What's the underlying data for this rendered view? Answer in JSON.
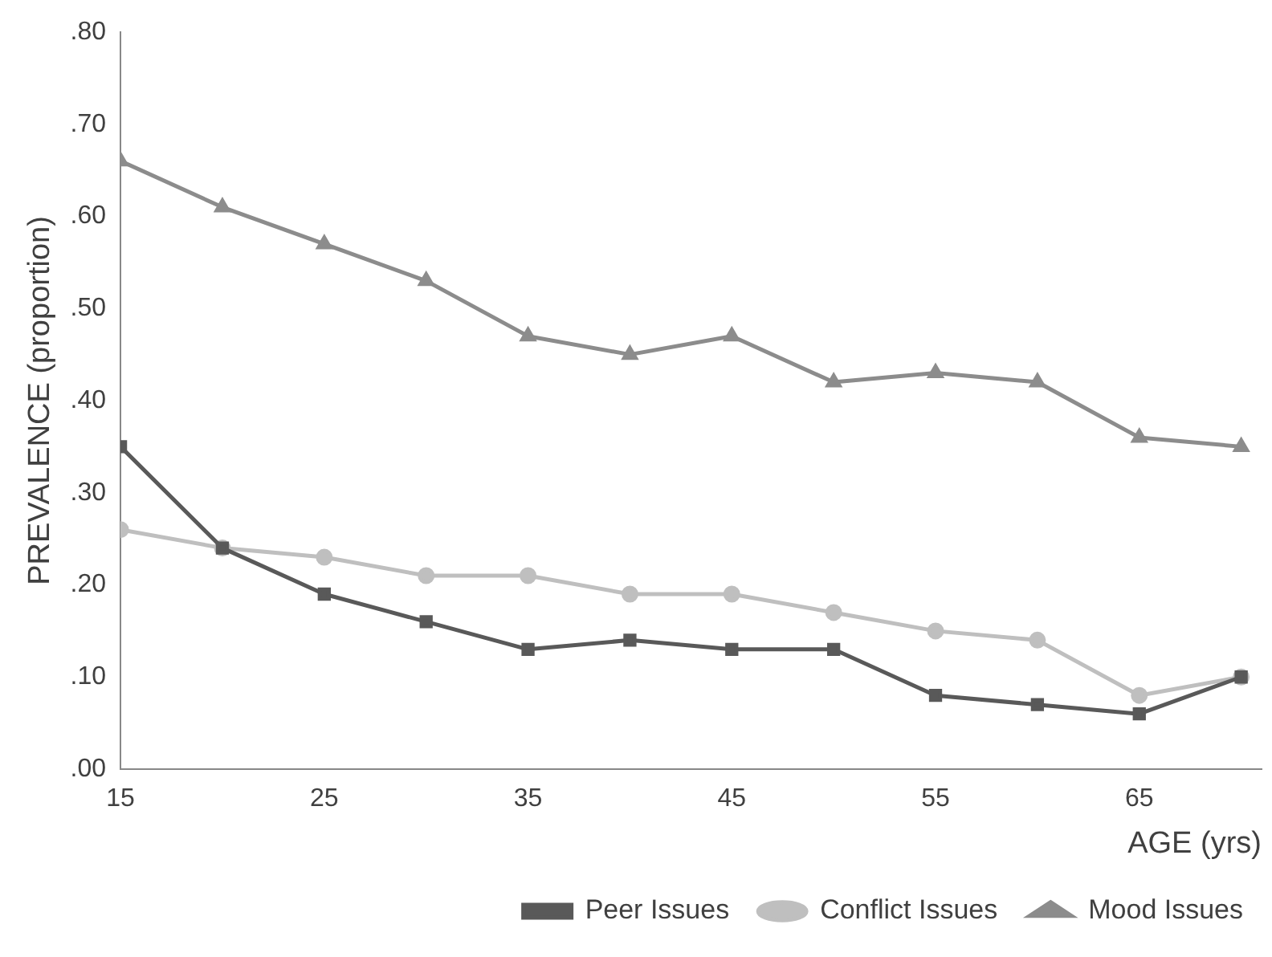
{
  "chart_data": {
    "type": "line",
    "xlabel": "AGE (yrs)",
    "ylabel": "PREVALENCE (proportion)",
    "x": [
      15,
      20,
      25,
      30,
      35,
      40,
      45,
      50,
      55,
      60,
      65,
      70
    ],
    "series": [
      {
        "name": "Peer Issues",
        "color": "#595959",
        "marker": "square",
        "values": [
          0.35,
          0.24,
          0.19,
          0.16,
          0.13,
          0.14,
          0.13,
          0.13,
          0.08,
          0.07,
          0.06,
          0.1
        ]
      },
      {
        "name": "Conflict Issues",
        "color": "#bfbfbf",
        "marker": "circle",
        "values": [
          0.26,
          0.24,
          0.23,
          0.21,
          0.21,
          0.19,
          0.19,
          0.17,
          0.15,
          0.14,
          0.08,
          0.1
        ]
      },
      {
        "name": "Mood Issues",
        "color": "#8c8c8c",
        "marker": "triangle",
        "values": [
          0.66,
          0.61,
          0.57,
          0.53,
          0.47,
          0.45,
          0.47,
          0.42,
          0.43,
          0.42,
          0.36,
          0.35
        ]
      }
    ],
    "xlim": [
      15,
      71
    ],
    "xticks": [
      15,
      25,
      35,
      45,
      55,
      65
    ],
    "ylim": [
      0,
      0.8
    ],
    "yticks": [
      {
        "value": 0,
        "label": ".00"
      },
      {
        "value": 0.1,
        "label": ".10"
      },
      {
        "value": 0.2,
        "label": ".20"
      },
      {
        "value": 0.3,
        "label": ".30"
      },
      {
        "value": 0.4,
        "label": ".40"
      },
      {
        "value": 0.5,
        "label": ".50"
      },
      {
        "value": 0.6,
        "label": ".60"
      },
      {
        "value": 0.7,
        "label": ".70"
      },
      {
        "value": 0.8,
        "label": ".80"
      }
    ],
    "grid": false,
    "legend": "bottom right",
    "line_style": "solid"
  }
}
